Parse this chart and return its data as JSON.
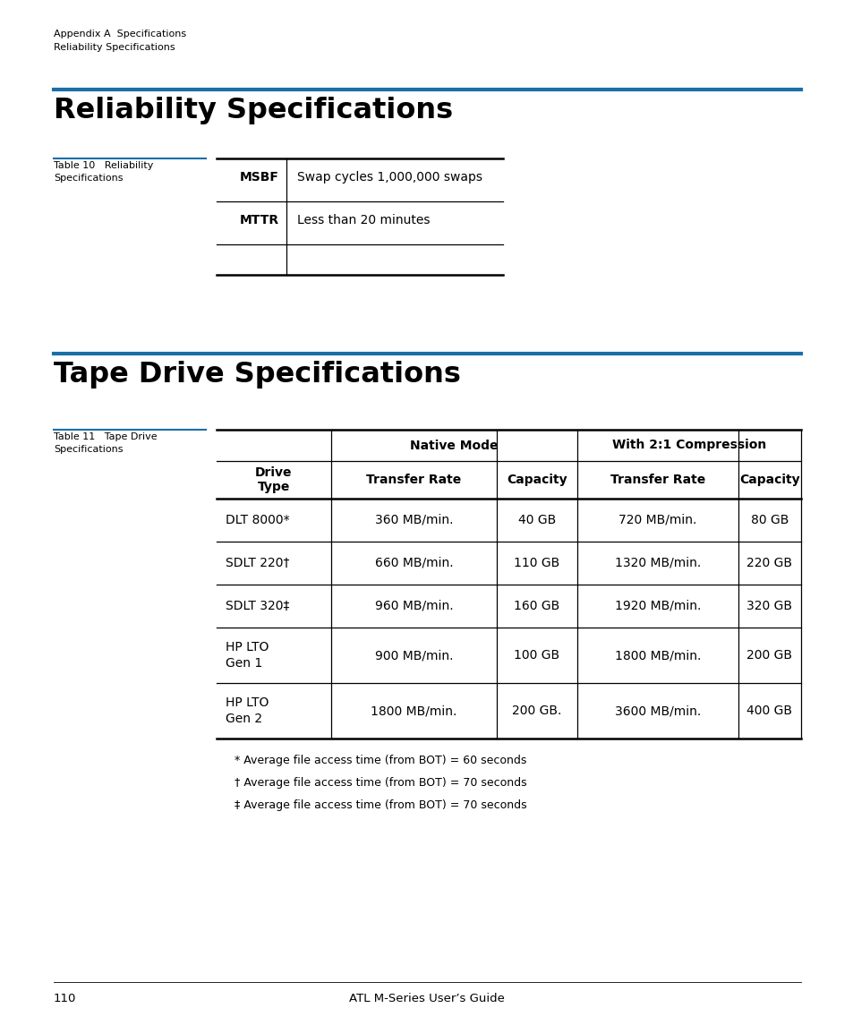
{
  "page_header_line1": "Appendix A  Specifications",
  "page_header_line2": "Reliability Specifications",
  "section1_title": "Reliability Specifications",
  "table10_label": "Table 10   Reliability\nSpecifications",
  "table10_data": [
    [
      "MSBF",
      "Swap cycles 1,000,000 swaps"
    ],
    [
      "MTTR",
      "Less than 20 minutes"
    ]
  ],
  "section2_title": "Tape Drive Specifications",
  "table11_label": "Table 11   Tape Drive\nSpecifications",
  "table11_data": [
    [
      "DLT 8000*",
      "360 MB/min.",
      "40 GB",
      "720 MB/min.",
      "80 GB"
    ],
    [
      "SDLT 220†",
      "660 MB/min.",
      "110 GB",
      "1320 MB/min.",
      "220 GB"
    ],
    [
      "SDLT 320‡",
      "960 MB/min.",
      "160 GB",
      "1920 MB/min.",
      "320 GB"
    ],
    [
      "HP LTO\nGen 1",
      "900 MB/min.",
      "100 GB",
      "1800 MB/min.",
      "200 GB"
    ],
    [
      "HP LTO\nGen 2",
      "1800 MB/min.",
      "200 GB.",
      "3600 MB/min.",
      "400 GB"
    ]
  ],
  "footnotes": [
    "* Average file access time (from BOT) = 60 seconds",
    "† Average file access time (from BOT) = 70 seconds",
    "‡ Average file access time (from BOT) = 70 seconds"
  ],
  "page_footer": "ATL M-Series User’s Guide",
  "page_number": "110",
  "blue_color": "#1a6fa8",
  "bg_color": "#ffffff",
  "text_color": "#000000"
}
